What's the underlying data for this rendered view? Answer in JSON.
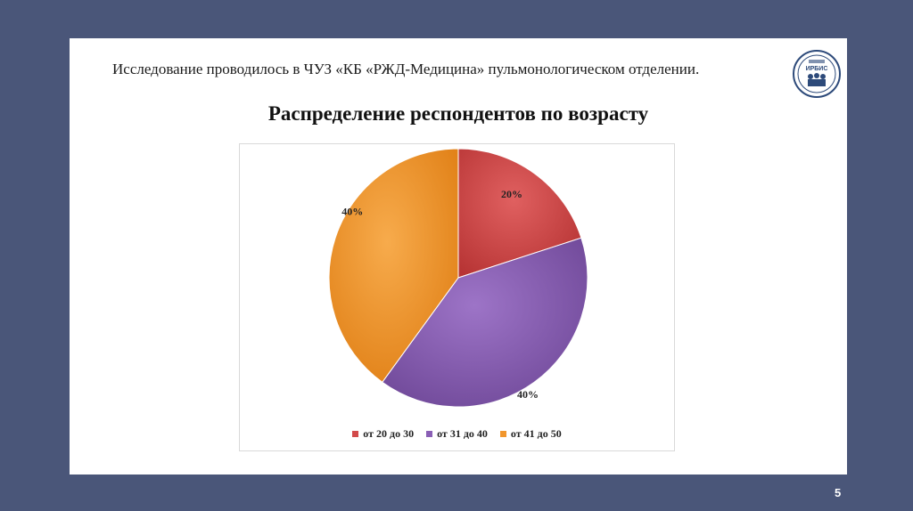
{
  "slide": {
    "subtitle": "Исследование проводилось в ЧУЗ «КБ «РЖД-Медицина» пульмонологическом отделении.",
    "logo_text": "ИРБИС",
    "page_number": "5"
  },
  "chart_data": {
    "type": "pie",
    "title": "Распределение респондентов по возрасту",
    "legend_position": "bottom",
    "categories": [
      "от 20 до 30",
      "от 31 до 40",
      "от 41 до 50"
    ],
    "values": [
      20,
      40,
      40
    ],
    "labels": [
      "20%",
      "40%",
      "40%"
    ],
    "colors": [
      "#d24a4a",
      "#8a5fb5",
      "#f1962c"
    ]
  }
}
